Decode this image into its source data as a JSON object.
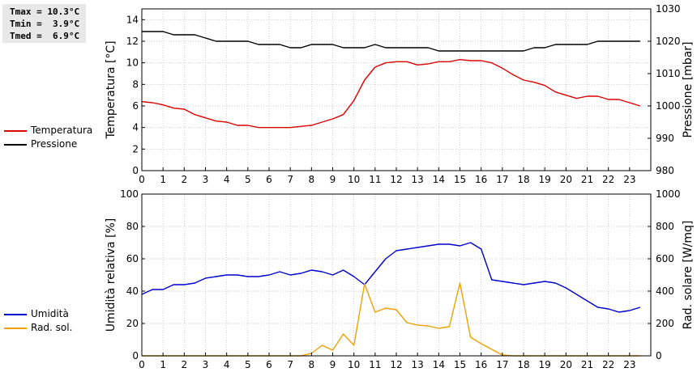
{
  "stats": {
    "tmax": "Tmax = 10.3°C",
    "tmin": "Tmin =  3.9°C",
    "tmed": "Tmed =  6.9°C"
  },
  "legend_top": [
    {
      "label": "Temperatura",
      "color": "#dd0000"
    },
    {
      "label": "Pressione",
      "color": "#000000"
    }
  ],
  "legend_bottom": [
    {
      "label": "Umidità",
      "color": "#0000cc"
    },
    {
      "label": "Rad. sol.",
      "color": "#f0a000"
    }
  ],
  "chart_data": [
    {
      "type": "line",
      "ylabel": "Temperatura [°C]",
      "ylabel_right": "Pressione [mbar]",
      "xlim": [
        0,
        24
      ],
      "xticks": [
        "0",
        "1",
        "2",
        "3",
        "4",
        "5",
        "6",
        "7",
        "8",
        "9",
        "10",
        "11",
        "12",
        "13",
        "14",
        "15",
        "16",
        "17",
        "18",
        "19",
        "20",
        "21",
        "22",
        "23"
      ],
      "ylim": [
        0,
        15
      ],
      "yticks": [
        "0",
        "2",
        "4",
        "6",
        "8",
        "10",
        "12",
        "14"
      ],
      "ylim_right": [
        980,
        1030
      ],
      "yticks_right": [
        "980",
        "990",
        "1000",
        "1010",
        "1020",
        "1030"
      ],
      "grid": true,
      "series": [
        {
          "name": "Temperatura",
          "axis": "left",
          "color": "#dd0000",
          "x": [
            0,
            0.5,
            1,
            1.5,
            2,
            2.5,
            3,
            3.5,
            4,
            4.5,
            5,
            5.5,
            6,
            6.5,
            7,
            7.5,
            8,
            8.5,
            9,
            9.5,
            10,
            10.5,
            11,
            11.5,
            12,
            12.5,
            13,
            13.5,
            14,
            14.5,
            15,
            15.5,
            16,
            16.5,
            17,
            17.5,
            18,
            18.5,
            19,
            19.5,
            20,
            20.5,
            21,
            21.5,
            22,
            22.5,
            23,
            23.5
          ],
          "values": [
            6.4,
            6.3,
            6.1,
            5.8,
            5.7,
            5.2,
            4.9,
            4.6,
            4.5,
            4.2,
            4.2,
            4.0,
            4.0,
            4.0,
            4.0,
            4.1,
            4.2,
            4.5,
            4.8,
            5.2,
            6.5,
            8.4,
            9.6,
            10.0,
            10.1,
            10.1,
            9.8,
            9.9,
            10.1,
            10.1,
            10.3,
            10.2,
            10.2,
            10.0,
            9.5,
            8.9,
            8.4,
            8.2,
            7.9,
            7.3,
            7.0,
            6.7,
            6.9,
            6.9,
            6.6,
            6.6,
            6.3,
            6.0
          ]
        },
        {
          "name": "Pressione",
          "axis": "right",
          "color": "#000000",
          "x": [
            0,
            0.5,
            1,
            1.5,
            2,
            2.5,
            3,
            3.5,
            4,
            4.5,
            5,
            5.5,
            6,
            6.5,
            7,
            7.5,
            8,
            8.5,
            9,
            9.5,
            10,
            10.5,
            11,
            11.5,
            12,
            12.5,
            13,
            13.5,
            14,
            14.5,
            15,
            15.5,
            16,
            16.5,
            17,
            17.5,
            18,
            18.5,
            19,
            19.5,
            20,
            20.5,
            21,
            21.5,
            22,
            22.5,
            23,
            23.5
          ],
          "values": [
            1023,
            1023,
            1023,
            1022,
            1022,
            1022,
            1021,
            1020,
            1020,
            1020,
            1020,
            1019,
            1019,
            1019,
            1018,
            1018,
            1019,
            1019,
            1019,
            1018,
            1018,
            1018,
            1019,
            1018,
            1018,
            1018,
            1018,
            1018,
            1017,
            1017,
            1017,
            1017,
            1017,
            1017,
            1017,
            1017,
            1017,
            1018,
            1018,
            1019,
            1019,
            1019,
            1019,
            1020,
            1020,
            1020,
            1020,
            1020
          ]
        }
      ]
    },
    {
      "type": "line",
      "ylabel": "Umidità relativa [%]",
      "ylabel_right": "Rad. solare [W/mq]",
      "xlim": [
        0,
        24
      ],
      "xticks": [
        "0",
        "1",
        "2",
        "3",
        "4",
        "5",
        "6",
        "7",
        "8",
        "9",
        "10",
        "11",
        "12",
        "13",
        "14",
        "15",
        "16",
        "17",
        "18",
        "19",
        "20",
        "21",
        "22",
        "23"
      ],
      "ylim": [
        0,
        100
      ],
      "yticks": [
        "0",
        "20",
        "40",
        "60",
        "80",
        "100"
      ],
      "ylim_right": [
        0,
        1000
      ],
      "yticks_right": [
        "0",
        "200",
        "400",
        "600",
        "800",
        "1000"
      ],
      "grid": true,
      "series": [
        {
          "name": "Umidità",
          "axis": "left",
          "color": "#0000cc",
          "x": [
            0,
            0.5,
            1,
            1.5,
            2,
            2.5,
            3,
            3.5,
            4,
            4.5,
            5,
            5.5,
            6,
            6.5,
            7,
            7.5,
            8,
            8.5,
            9,
            9.5,
            10,
            10.5,
            11,
            11.5,
            12,
            12.5,
            13,
            13.5,
            14,
            14.5,
            15,
            15.5,
            16,
            16.5,
            17,
            17.5,
            18,
            18.5,
            19,
            19.5,
            20,
            20.5,
            21,
            21.5,
            22,
            22.5,
            23,
            23.5
          ],
          "values": [
            38,
            41,
            41,
            44,
            44,
            45,
            48,
            49,
            50,
            50,
            49,
            49,
            50,
            52,
            50,
            51,
            53,
            52,
            50,
            53,
            49,
            44,
            52,
            60,
            65,
            66,
            67,
            68,
            69,
            69,
            68,
            70,
            66,
            47,
            46,
            45,
            44,
            45,
            46,
            45,
            42,
            38,
            34,
            30,
            29,
            27,
            28,
            30
          ]
        },
        {
          "name": "Rad. sol.",
          "axis": "right",
          "color": "#f0a000",
          "x": [
            0,
            0.5,
            1,
            1.5,
            2,
            2.5,
            3,
            3.5,
            4,
            4.5,
            5,
            5.5,
            6,
            6.5,
            7,
            7.5,
            8,
            8.5,
            9,
            9.5,
            10,
            10.5,
            11,
            11.5,
            12,
            12.5,
            13,
            13.5,
            14,
            14.5,
            15,
            15.5,
            16,
            16.5,
            17,
            17.5,
            18,
            18.5,
            19,
            19.5,
            20,
            20.5,
            21,
            21.5,
            22,
            22.5,
            23,
            23.5
          ],
          "values": [
            0,
            0,
            0,
            0,
            0,
            0,
            0,
            0,
            0,
            0,
            0,
            0,
            0,
            0,
            0,
            0,
            15,
            65,
            35,
            135,
            65,
            445,
            270,
            295,
            285,
            205,
            190,
            185,
            170,
            180,
            450,
            115,
            75,
            40,
            5,
            0,
            0,
            0,
            0,
            0,
            0,
            0,
            0,
            0,
            0,
            0,
            0,
            0
          ]
        }
      ]
    }
  ]
}
